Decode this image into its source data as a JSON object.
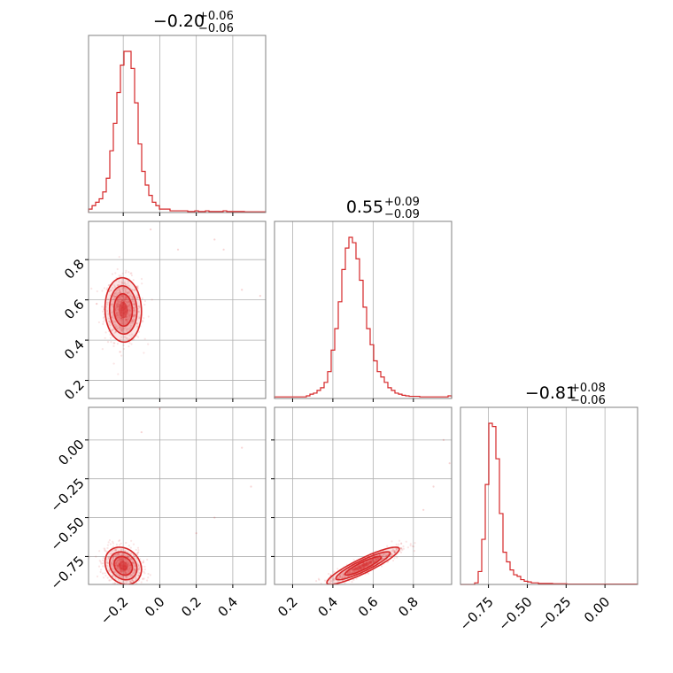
{
  "chart_data": {
    "type": "corner",
    "parameters": [
      {
        "median": "−0.20",
        "plus": "+0.06",
        "minus": "−0.06",
        "range": [
          -0.39,
          0.58
        ]
      },
      {
        "median": "0.55",
        "plus": "+0.09",
        "minus": "−0.09",
        "range": [
          0.11,
          0.99
        ]
      },
      {
        "median": "−0.81",
        "plus": "+0.08",
        "minus": "−0.06",
        "range": [
          -0.93,
          0.21
        ]
      }
    ],
    "ticks": [
      {
        "values": [
          -0.2,
          0.0,
          0.2,
          0.4
        ],
        "labels": [
          "−0.2",
          "0.0",
          "0.2",
          "0.4"
        ]
      },
      {
        "values": [
          0.2,
          0.4,
          0.6,
          0.8
        ],
        "labels": [
          "0.2",
          "0.4",
          "0.6",
          "0.8"
        ]
      },
      {
        "values": [
          -0.75,
          -0.5,
          -0.25,
          0.0
        ],
        "labels": [
          "−0.75",
          "−0.50",
          "−0.25",
          "0.00"
        ]
      }
    ],
    "color": "#d62728",
    "grid": true,
    "histograms": [
      {
        "counts": [
          1,
          2,
          3,
          4,
          6,
          10,
          18,
          26,
          35,
          43,
          47,
          47,
          42,
          32,
          20,
          12,
          8,
          5,
          3,
          2,
          1,
          1,
          1,
          0.5,
          0.5,
          0.5,
          0.5,
          0.5,
          0.3,
          0.3,
          0.5,
          0.3,
          0.3,
          0.5,
          0.3,
          0.3,
          0.3,
          0.3,
          0.5,
          0.3,
          0.3,
          0.3,
          0.3,
          0.3,
          0.2,
          0.2,
          0.2,
          0.2,
          0.2,
          0.2
        ]
      },
      {
        "counts": [
          0.3,
          0.3,
          0.3,
          0.3,
          0.3,
          0.3,
          0.3,
          0.3,
          0.3,
          0.5,
          0.8,
          1,
          1.5,
          2,
          3,
          5,
          9,
          13,
          18,
          24,
          28,
          30,
          29,
          26,
          22,
          17,
          13,
          10,
          7,
          5,
          4,
          3,
          2,
          1.5,
          1,
          0.8,
          0.6,
          0.5,
          0.4,
          0.4,
          0.4,
          0.3,
          0.3,
          0.3,
          0.3,
          0.3,
          0.3,
          0.3,
          0.3,
          0.5
        ]
      },
      {
        "counts": [
          0,
          0,
          0,
          0,
          0.5,
          4,
          14,
          31,
          50,
          49,
          39,
          22,
          10,
          7,
          4.5,
          3,
          2.5,
          1.5,
          1,
          0.8,
          0.5,
          0.5,
          0.3,
          0.3,
          0.3,
          0.3,
          0.2,
          0.2,
          0.2,
          0.2,
          0.1,
          0.1,
          0.1,
          0.1,
          0.1,
          0.1,
          0.1,
          0.1,
          0.1,
          0.1,
          0.1,
          0.1,
          0.1,
          0.1,
          0.1,
          0.1,
          0.1,
          0.1,
          0.1,
          0.1
        ]
      }
    ],
    "pairs": [
      {
        "x_param": 0,
        "y_param": 1,
        "mean": [
          -0.2,
          0.55
        ],
        "sd": [
          0.05,
          0.08
        ],
        "corr": -0.05,
        "outliers": [
          [
            0.3,
            0.9
          ],
          [
            0.45,
            0.65
          ],
          [
            0.55,
            0.62
          ],
          [
            -0.05,
            0.95
          ],
          [
            0.1,
            0.85
          ],
          [
            0.35,
            0.85
          ]
        ]
      },
      {
        "x_param": 0,
        "y_param": 2,
        "mean": [
          -0.2,
          -0.81
        ],
        "sd": [
          0.05,
          0.06
        ],
        "corr": -0.2,
        "outliers": [
          [
            0.0,
            0.2
          ],
          [
            0.45,
            -0.05
          ],
          [
            0.5,
            -0.3
          ],
          [
            -0.1,
            0.05
          ],
          [
            0.2,
            -0.6
          ],
          [
            0.3,
            -0.5
          ]
        ]
      },
      {
        "x_param": 1,
        "y_param": 2,
        "mean": [
          0.55,
          -0.81
        ],
        "sd": [
          0.09,
          0.06
        ],
        "corr": 0.9,
        "outliers": [
          [
            0.95,
            0.0
          ],
          [
            0.98,
            -0.15
          ],
          [
            0.9,
            -0.3
          ],
          [
            0.85,
            -0.45
          ]
        ]
      }
    ]
  }
}
